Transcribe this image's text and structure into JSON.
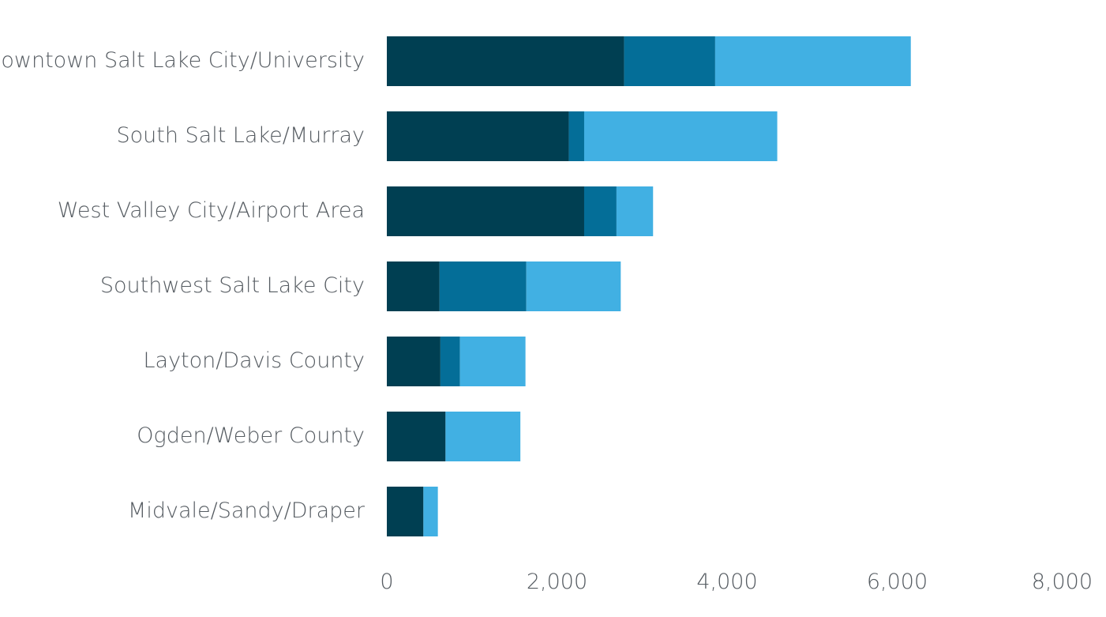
{
  "chart_data": {
    "type": "bar",
    "orientation": "horizontal",
    "stacked": true,
    "categories": [
      "Downtown Salt Lake City/University",
      "South Salt Lake/Murray",
      "West Valley City/Airport Area",
      "Southwest Salt Lake City",
      "Layton/Davis County",
      "Ogden/Weber County",
      "Midvale/Sandy/Draper"
    ],
    "series": [
      {
        "values": [
          2790,
          2140,
          2320,
          620,
          630,
          690,
          430
        ],
        "color": "#003f52"
      },
      {
        "values": [
          1070,
          180,
          380,
          1020,
          230,
          0,
          0
        ],
        "color": "#046e98"
      },
      {
        "values": [
          2300,
          2270,
          430,
          1110,
          770,
          880,
          170
        ],
        "color": "#41b0e3"
      }
    ],
    "xlim": [
      0,
      8000
    ],
    "xticks": [
      0,
      2000,
      4000,
      6000,
      8000
    ],
    "xtick_labels": [
      "0",
      "2,000",
      "4,000",
      "6,000",
      "8,000"
    ],
    "title": "",
    "xlabel": "",
    "ylabel": "",
    "grid": false,
    "legend": false
  }
}
